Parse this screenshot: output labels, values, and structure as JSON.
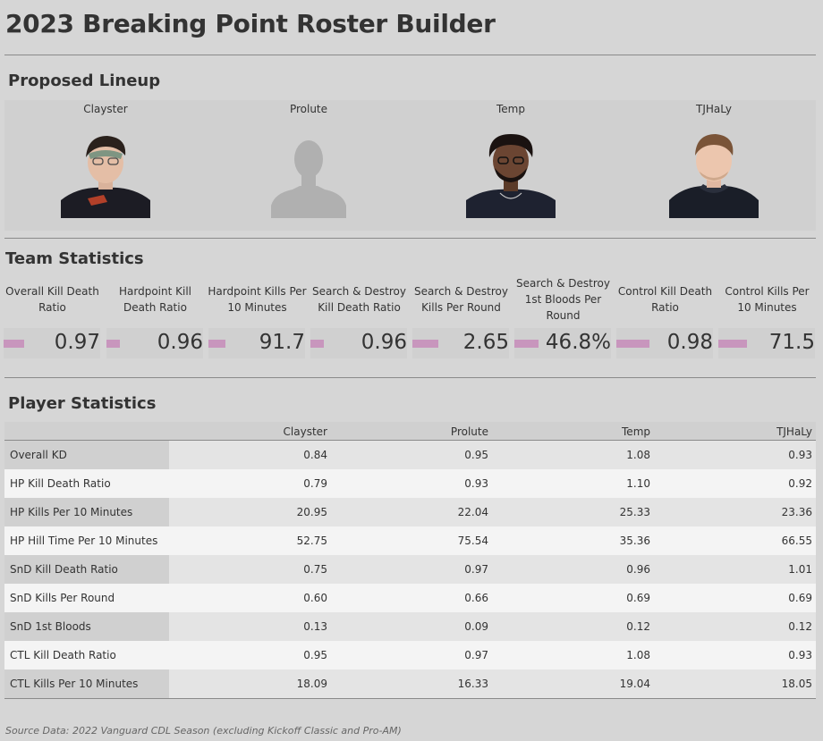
{
  "title": "2023 Breaking Point Roster Builder",
  "lineup": {
    "heading": "Proposed Lineup",
    "players": [
      {
        "name": "Clayster",
        "photo": "player-photo"
      },
      {
        "name": "Prolute",
        "photo": "silhouette-placeholder"
      },
      {
        "name": "Temp",
        "photo": "player-photo"
      },
      {
        "name": "TJHaLy",
        "photo": "player-photo"
      }
    ]
  },
  "team_stats": {
    "heading": "Team Statistics",
    "bar_color": "#c896bd",
    "kpis": [
      {
        "label": "Overall Kill Death Ratio",
        "value": "0.97",
        "bar_fraction": 0.21
      },
      {
        "label": "Hardpoint Kill Death Ratio",
        "value": "0.96",
        "bar_fraction": 0.14
      },
      {
        "label": "Hardpoint Kills Per 10 Minutes",
        "value": "91.7",
        "bar_fraction": 0.18
      },
      {
        "label": "Search & Destroy Kill Death Ratio",
        "value": "0.96",
        "bar_fraction": 0.14
      },
      {
        "label": "Search & Destroy Kills Per Round",
        "value": "2.65",
        "bar_fraction": 0.27
      },
      {
        "label": "Search & Destroy 1st Bloods Per Round",
        "value": "46.8%",
        "bar_fraction": 0.25
      },
      {
        "label": "Control Kill Death Ratio",
        "value": "0.98",
        "bar_fraction": 0.34
      },
      {
        "label": "Control Kills Per 10 Minutes",
        "value": "71.5",
        "bar_fraction": 0.3
      }
    ]
  },
  "player_stats": {
    "heading": "Player Statistics",
    "columns": [
      "Clayster",
      "Prolute",
      "Temp",
      "TJHaLy"
    ],
    "rows": [
      {
        "label": "Overall KD",
        "values": [
          "0.84",
          "0.95",
          "1.08",
          "0.93"
        ]
      },
      {
        "label": "HP Kill Death Ratio",
        "values": [
          "0.79",
          "0.93",
          "1.10",
          "0.92"
        ]
      },
      {
        "label": "HP Kills Per 10 Minutes",
        "values": [
          "20.95",
          "22.04",
          "25.33",
          "23.36"
        ]
      },
      {
        "label": "HP Hill Time Per 10 Minutes",
        "values": [
          "52.75",
          "75.54",
          "35.36",
          "66.55"
        ]
      },
      {
        "label": "SnD Kill Death Ratio",
        "values": [
          "0.75",
          "0.97",
          "0.96",
          "1.01"
        ]
      },
      {
        "label": "SnD Kills Per Round",
        "values": [
          "0.60",
          "0.66",
          "0.69",
          "0.69"
        ]
      },
      {
        "label": "SnD 1st Bloods",
        "values": [
          "0.13",
          "0.09",
          "0.12",
          "0.12"
        ]
      },
      {
        "label": "CTL Kill Death Ratio",
        "values": [
          "0.95",
          "0.97",
          "1.08",
          "0.93"
        ]
      },
      {
        "label": "CTL Kills Per 10 Minutes",
        "values": [
          "18.09",
          "16.33",
          "19.04",
          "18.05"
        ]
      }
    ]
  },
  "footer": "Source Data: 2022 Vanguard CDL Season (excluding Kickoff Classic and Pro-AM)"
}
